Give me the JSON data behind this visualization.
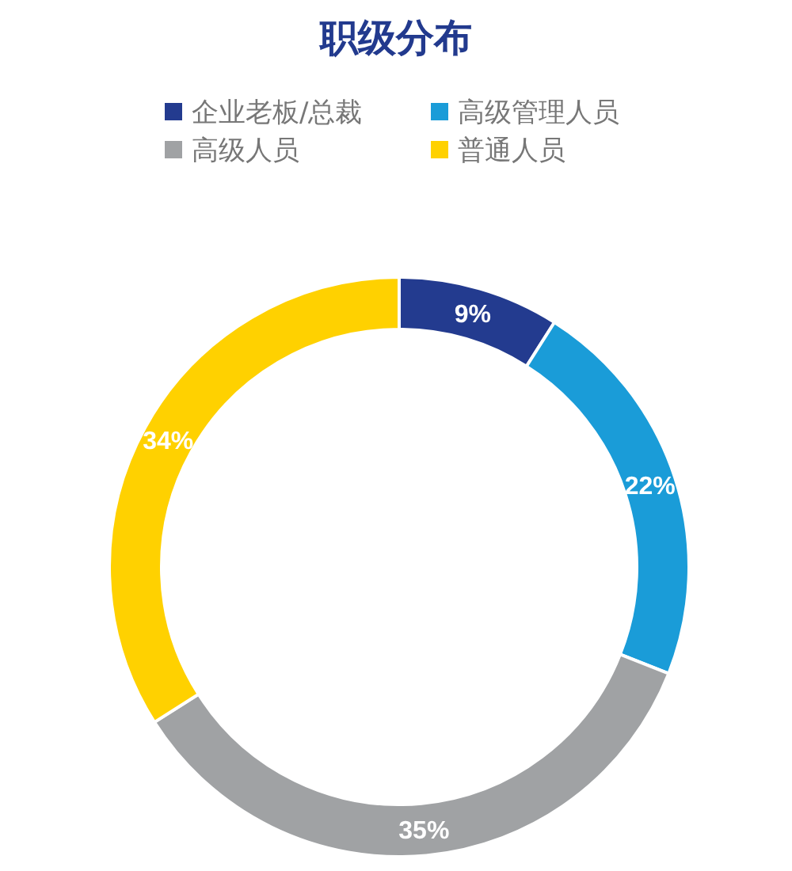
{
  "chart_data": {
    "type": "donut",
    "title": "职级分布",
    "categories": [
      "企业老板/总裁",
      "高级管理人员",
      "高级人员",
      "普通人员"
    ],
    "values": [
      9,
      22,
      35,
      34
    ],
    "colors": [
      "#233b8f",
      "#1a9cd8",
      "#a0a2a4",
      "#ffd100"
    ],
    "value_labels": [
      "9%",
      "22%",
      "35%",
      "34%"
    ],
    "legend": "top"
  }
}
